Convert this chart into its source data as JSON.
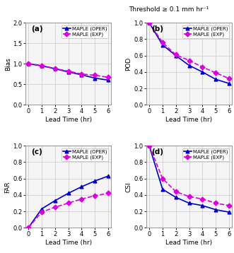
{
  "x": [
    0,
    1,
    2,
    3,
    4,
    5,
    6
  ],
  "bias_oper": [
    1.0,
    0.95,
    0.88,
    0.8,
    0.73,
    0.65,
    0.6
  ],
  "bias_exp": [
    1.0,
    0.96,
    0.88,
    0.82,
    0.75,
    0.72,
    0.67
  ],
  "pod_oper": [
    1.0,
    0.73,
    0.6,
    0.48,
    0.4,
    0.31,
    0.26
  ],
  "pod_exp": [
    1.0,
    0.76,
    0.61,
    0.54,
    0.46,
    0.39,
    0.32
  ],
  "far_oper": [
    0.0,
    0.23,
    0.33,
    0.42,
    0.5,
    0.57,
    0.63
  ],
  "far_exp": [
    0.0,
    0.19,
    0.25,
    0.3,
    0.35,
    0.39,
    0.42
  ],
  "csi_oper": [
    1.0,
    0.47,
    0.37,
    0.3,
    0.27,
    0.22,
    0.19
  ],
  "csi_exp": [
    1.0,
    0.6,
    0.44,
    0.38,
    0.35,
    0.3,
    0.27
  ],
  "color_oper": "#0000cc",
  "color_exp": "#dd00dd",
  "marker_oper": "^",
  "marker_exp": "D",
  "linestyle_oper": "-",
  "linestyle_exp": "--",
  "label_oper": "MAPLE (OPER)",
  "label_exp": "MAPLE (EXP)",
  "xlabel": "Lead Time (hr)",
  "ylabel_a": "Bias",
  "ylabel_b": "POD",
  "ylabel_c": "FAR",
  "ylabel_d": "CSI",
  "panel_labels": [
    "(a)",
    "(b)",
    "(c)",
    "(d)"
  ],
  "ylim_a": [
    0.0,
    2.0
  ],
  "ylim_b": [
    0.0,
    1.0
  ],
  "ylim_c": [
    0.0,
    1.0
  ],
  "ylim_d": [
    0.0,
    1.0
  ],
  "yticks_a": [
    0.0,
    0.5,
    1.0,
    1.5,
    2.0
  ],
  "yticks_bcd": [
    0.0,
    0.2,
    0.4,
    0.6,
    0.8,
    1.0
  ],
  "xticks": [
    0,
    1,
    2,
    3,
    4,
    5,
    6
  ],
  "suptitle": "Threshold ≥ 0.1 mm hr⁻¹",
  "bg_color": "#ffffff",
  "axes_bg_color": "#f5f5f5",
  "grid_color": "#d0d0d0",
  "markersize": 3.5,
  "linewidth": 1.2,
  "fontsize_label": 6.5,
  "fontsize_tick": 6,
  "fontsize_panel": 7.5,
  "fontsize_legend": 5,
  "fontsize_suptitle": 6.5
}
